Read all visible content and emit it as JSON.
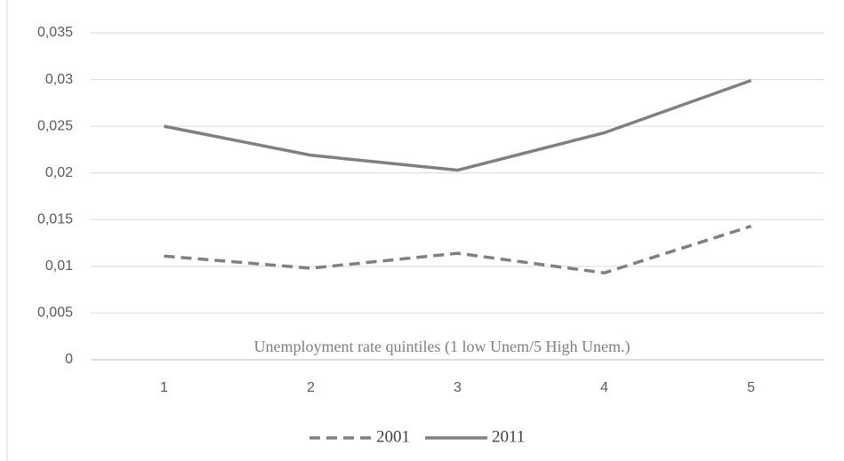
{
  "chart_data": {
    "type": "line",
    "x_label": "Unemployment rate quintiles (1 low Unem/5 High Unem.)",
    "categories": [
      "1",
      "2",
      "3",
      "4",
      "5"
    ],
    "series": [
      {
        "name": "2001",
        "color": "#808080",
        "line_style": "dashed",
        "values": [
          0.0111,
          0.0098,
          0.0114,
          0.0093,
          0.0143
        ]
      },
      {
        "name": "2011",
        "color": "#808080",
        "line_style": "solid",
        "values": [
          0.025,
          0.0219,
          0.0203,
          0.0243,
          0.0299
        ]
      }
    ],
    "ylim": [
      0,
      0.035
    ],
    "yticks": [
      0,
      {
        "value": 0.005,
        "label": "0,005"
      },
      {
        "value": 0.01,
        "label": "0,01"
      },
      {
        "value": 0.015,
        "label": "0,015"
      },
      {
        "value": 0.02,
        "label": "0,02"
      },
      {
        "value": 0.025,
        "label": "0,025"
      },
      {
        "value": 0.03,
        "label": "0,03"
      },
      {
        "value": 0.035,
        "label": "0,035"
      }
    ],
    "grid": true,
    "legend_position": "bottom"
  }
}
